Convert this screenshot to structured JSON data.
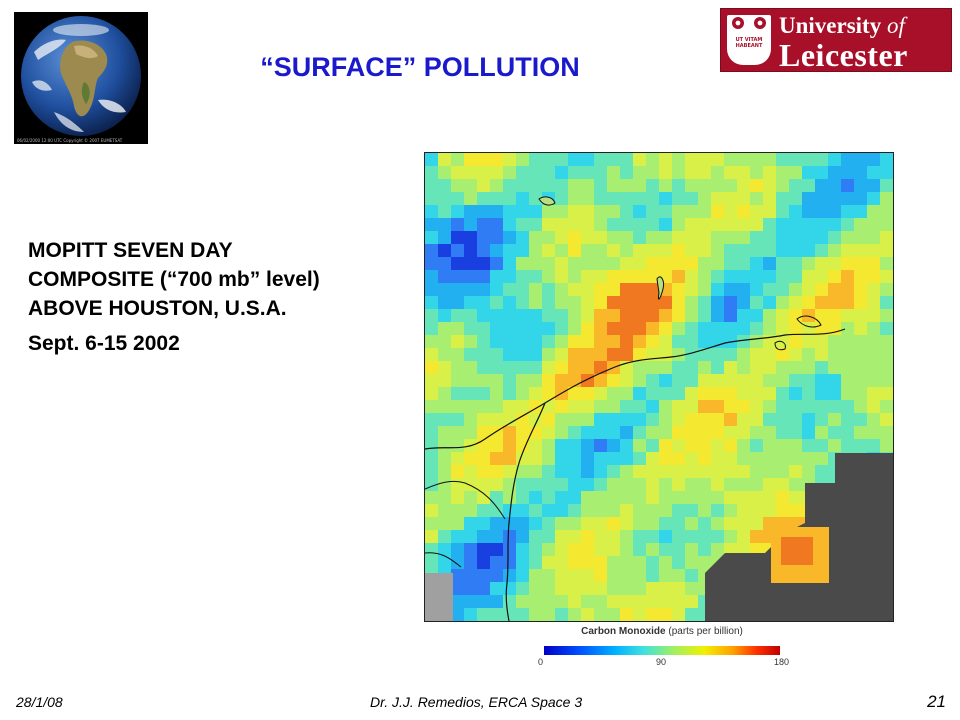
{
  "slide": {
    "title": "“SURFACE” POLLUTION",
    "body_line1": "MOPITT SEVEN DAY",
    "body_line2": "COMPOSITE (“700 mb” level)",
    "body_line3": "ABOVE HOUSTON, U.S.A.",
    "date_range": "Sept. 6-15 2002",
    "title_color": "#1a1acc"
  },
  "earth_image": {
    "icon": "earth-globe-icon",
    "caption": "06/02/2000  12:00 UTC Copyright © 2007 EUMETSAT"
  },
  "logo": {
    "icon": "university-crest-icon",
    "line1_main": "University ",
    "line1_of": "of",
    "line2": "Leicester",
    "motto": "UT VITAM HABEANT",
    "brand_color": "#a8102a"
  },
  "map": {
    "icon": "co-concentration-map",
    "no_data_color": "#4a4a4a",
    "land_boundary_color": "#111111"
  },
  "legend": {
    "title": "Carbon Monoxide",
    "unit": "(parts per billion)",
    "ticks": [
      "0",
      "90",
      "180"
    ],
    "tick_fractions": [
      0.0,
      0.5,
      1.0
    ]
  },
  "footer": {
    "date": "28/1/08",
    "author": "Dr. J.J. Remedios, ERCA Space 3",
    "page": "21"
  }
}
